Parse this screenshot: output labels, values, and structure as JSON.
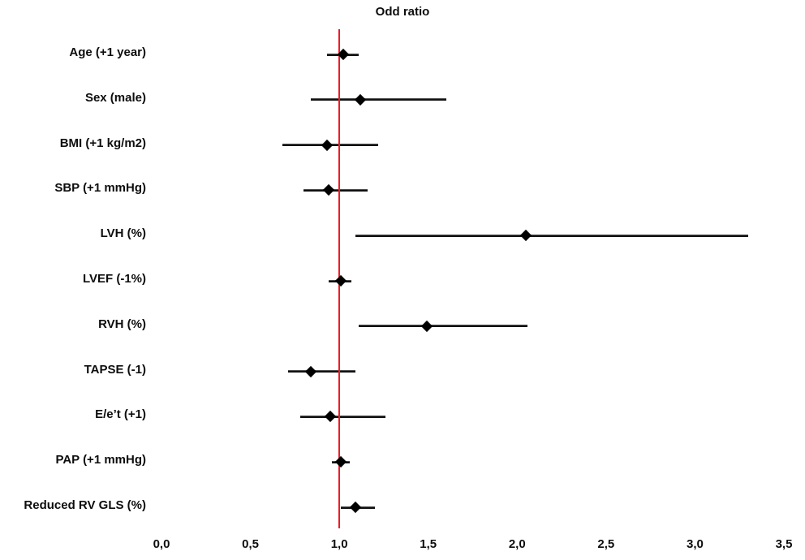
{
  "chart_data": {
    "type": "scatter",
    "variant": "forest-plot",
    "title": "Odd ratio",
    "xlabel": "",
    "ylabel": "",
    "xlim": [
      0.0,
      3.5
    ],
    "x_ticks": [
      0.0,
      0.5,
      1.0,
      1.5,
      2.0,
      2.5,
      3.0,
      3.5
    ],
    "x_tick_labels": [
      "0,0",
      "0,5",
      "1,0",
      "1,5",
      "2,0",
      "2,5",
      "3,0",
      "3,5"
    ],
    "grid": false,
    "legend": "none",
    "marker": "diamond",
    "marker_color": "#000000",
    "ci_line_color": "#111111",
    "reference_line": {
      "x": 1.0,
      "color": "#ed1c24"
    },
    "rows": [
      {
        "label": "Age (+1 year)",
        "or": 1.02,
        "ci_low": 0.93,
        "ci_high": 1.11
      },
      {
        "label": "Sex (male)",
        "or": 1.12,
        "ci_low": 0.84,
        "ci_high": 1.6
      },
      {
        "label": "BMI (+1 kg/m2)",
        "or": 0.93,
        "ci_low": 0.68,
        "ci_high": 1.22
      },
      {
        "label": "SBP (+1 mmHg)",
        "or": 0.94,
        "ci_low": 0.8,
        "ci_high": 1.16
      },
      {
        "label": "LVH (%)",
        "or": 2.05,
        "ci_low": 1.09,
        "ci_high": 3.3
      },
      {
        "label": "LVEF (-1%)",
        "or": 1.01,
        "ci_low": 0.94,
        "ci_high": 1.07
      },
      {
        "label": "RVH (%)",
        "or": 1.49,
        "ci_low": 1.11,
        "ci_high": 2.06
      },
      {
        "label": "TAPSE (-1)",
        "or": 0.84,
        "ci_low": 0.71,
        "ci_high": 1.09
      },
      {
        "label": "E/e’t (+1)",
        "or": 0.95,
        "ci_low": 0.78,
        "ci_high": 1.26
      },
      {
        "label": "PAP (+1 mmHg)",
        "or": 1.01,
        "ci_low": 0.96,
        "ci_high": 1.06
      },
      {
        "label": "Reduced RV GLS (%)",
        "or": 1.09,
        "ci_low": 1.01,
        "ci_high": 1.2
      }
    ]
  }
}
